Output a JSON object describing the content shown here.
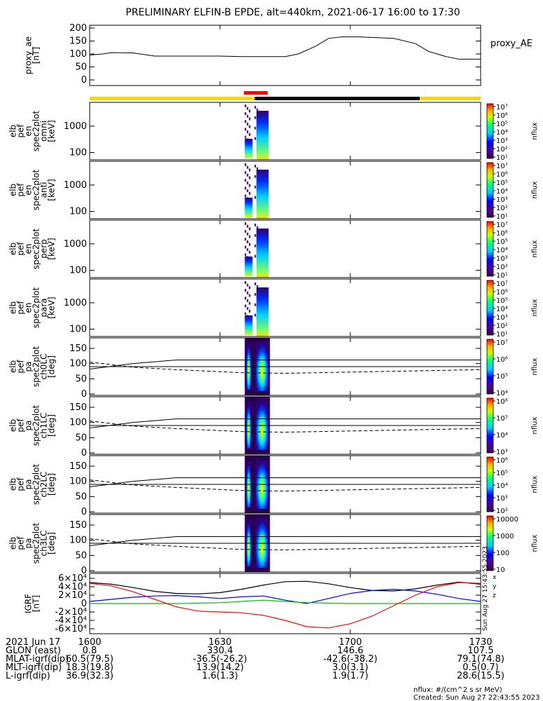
{
  "title": "PRELIMINARY ELFIN-B EPDE, alt=440km, 2021-06-17 16:00 to 17:30",
  "colors": {
    "axis": "#000000",
    "bar_yellow": "#ffd700",
    "bar_red": "#ff0000",
    "bar_black": "#000000",
    "bx": "#0000ff",
    "by": "#00c000",
    "bz": "#ff0000",
    "btot": "#000000"
  },
  "chart_data": [
    {
      "panel": "proxy_ae",
      "type": "line",
      "ylabel_lines": [
        "proxy_ae",
        "[nT]"
      ],
      "legend": "proxy_AE",
      "ylim": [
        0,
        200
      ],
      "yticks": [
        "0",
        "50",
        "100",
        "150",
        "200"
      ],
      "x_minutes": [
        0,
        3,
        5,
        10,
        15,
        18,
        20,
        30,
        35,
        45,
        48,
        52,
        55,
        58,
        62,
        70,
        75,
        78,
        80,
        82,
        85,
        90
      ],
      "values": [
        96,
        100,
        105,
        104,
        92,
        92,
        92,
        92,
        90,
        90,
        100,
        130,
        160,
        166,
        166,
        160,
        140,
        110,
        100,
        90,
        80,
        80
      ]
    },
    {
      "panel": "time_bar",
      "type": "status-bar",
      "segments": [
        {
          "start": 0,
          "end": 38,
          "color": "yellow"
        },
        {
          "start": 38,
          "end": 76,
          "color": "black"
        },
        {
          "start": 76,
          "end": 90,
          "color": "yellow"
        }
      ],
      "highlight": {
        "start": 35.5,
        "end": 41,
        "color": "red"
      }
    },
    {
      "panel": "en_omni",
      "type": "heatmap",
      "ylabel_lines": [
        "elb",
        "pef",
        "en",
        "spec2plot",
        "omni",
        "[keV]"
      ],
      "yscale": "log",
      "yticks": [
        "100",
        "1000"
      ],
      "colorbar": {
        "label": "nflux",
        "ticks": [
          "10¹",
          "10²",
          "10³",
          "10⁴",
          "10⁵",
          "10⁶",
          "10⁷"
        ]
      }
    },
    {
      "panel": "en_anti",
      "type": "heatmap",
      "ylabel_lines": [
        "elb",
        "pef",
        "en",
        "spec2plot",
        "anti",
        "[keV]"
      ],
      "yscale": "log",
      "yticks": [
        "100",
        "1000"
      ],
      "colorbar": {
        "label": "nflux",
        "ticks": [
          "10¹",
          "10²",
          "10³",
          "10⁴",
          "10⁵",
          "10⁶",
          "10⁷"
        ]
      }
    },
    {
      "panel": "en_perp",
      "type": "heatmap",
      "ylabel_lines": [
        "elb",
        "pef",
        "en",
        "spec2plot",
        "perp",
        "[keV]"
      ],
      "yscale": "log",
      "yticks": [
        "100",
        "1000"
      ],
      "colorbar": {
        "label": "nflux",
        "ticks": [
          "10¹",
          "10²",
          "10³",
          "10⁴",
          "10⁵",
          "10⁶",
          "10⁷"
        ]
      }
    },
    {
      "panel": "en_para",
      "type": "heatmap",
      "ylabel_lines": [
        "elb",
        "pef",
        "en",
        "spec2plot",
        "para",
        "[keV]"
      ],
      "yscale": "log",
      "yticks": [
        "100",
        "1000"
      ],
      "colorbar": {
        "label": "nflux",
        "ticks": [
          "10¹",
          "10²",
          "10³",
          "10⁴",
          "10⁵",
          "10⁶",
          "10⁷"
        ]
      }
    },
    {
      "panel": "pa_ch0",
      "type": "heatmap",
      "ylabel_lines": [
        "elb",
        "pef",
        "pa",
        "spec2plot",
        "ch0LC",
        "[deg]"
      ],
      "ylim": [
        0,
        180
      ],
      "yticks": [
        "0",
        "50",
        "100",
        "150"
      ],
      "colorbar": {
        "label": "nflux",
        "ticks": [
          "10⁴",
          "10⁵",
          "10⁶",
          "10⁷"
        ]
      }
    },
    {
      "panel": "pa_ch1",
      "type": "heatmap",
      "ylabel_lines": [
        "elb",
        "pef",
        "pa",
        "spec2plot",
        "ch1LC",
        "[deg]"
      ],
      "ylim": [
        0,
        180
      ],
      "yticks": [
        "0",
        "50",
        "100",
        "150"
      ],
      "colorbar": {
        "label": "nflux",
        "ticks": [
          "10³",
          "10⁴",
          "10⁵",
          "10⁶"
        ]
      }
    },
    {
      "panel": "pa_ch2",
      "type": "heatmap",
      "ylabel_lines": [
        "elb",
        "pef",
        "pa",
        "spec2plot",
        "ch2LC",
        "[deg]"
      ],
      "ylim": [
        0,
        180
      ],
      "yticks": [
        "0",
        "50",
        "100",
        "150"
      ],
      "colorbar": {
        "label": "nflux",
        "ticks": [
          "10²",
          "10³",
          "10⁴",
          "10⁵",
          "10⁶"
        ]
      }
    },
    {
      "panel": "pa_ch3",
      "type": "heatmap",
      "ylabel_lines": [
        "elb",
        "pef",
        "pa",
        "spec2plot",
        "ch3LC",
        "[deg]"
      ],
      "ylim": [
        0,
        180
      ],
      "yticks": [
        "0",
        "50",
        "100",
        "150"
      ],
      "colorbar": {
        "label": "nflux",
        "ticks": [
          "10",
          "100",
          "1000",
          "10000"
        ]
      }
    },
    {
      "panel": "igrf",
      "type": "line",
      "ylabel_lines": [
        "IGRF",
        "[nT]"
      ],
      "ylim": [
        -65000,
        65000
      ],
      "yticks": [
        "-6×10⁴",
        "-4×10⁴",
        "-2×10⁴",
        "0",
        "2×10⁴",
        "4×10⁴",
        "6×10⁴"
      ],
      "side_labels": [
        "x",
        "y",
        "z"
      ],
      "x_minutes": [
        0,
        5,
        10,
        15,
        20,
        25,
        30,
        35,
        40,
        45,
        50,
        55,
        60,
        65,
        70,
        75,
        80,
        85,
        90
      ],
      "series": [
        {
          "values": [
            50000,
            46000,
            38000,
            29000,
            24000,
            23000,
            26000,
            34000,
            44000,
            52000,
            53000,
            47000,
            38000,
            31000,
            30000,
            35000,
            44000,
            51000,
            46000
          ]
        },
        {
          "values": [
            5000,
            10000,
            15000,
            18000,
            19000,
            16000,
            12000,
            16000,
            18000,
            8000,
            0,
            12000,
            24000,
            31000,
            34000,
            30000,
            22000,
            12000,
            5000
          ]
        },
        {
          "values": [
            0,
            0,
            0,
            0,
            0,
            1000,
            2000,
            5000,
            8000,
            5000,
            2000,
            1000,
            0,
            0,
            0,
            0,
            0,
            0,
            0
          ]
        },
        {
          "values": [
            48000,
            42000,
            28000,
            10000,
            -8000,
            -18000,
            -20000,
            -22000,
            -28000,
            -40000,
            -55000,
            -58000,
            -48000,
            -30000,
            -5000,
            20000,
            40000,
            50000,
            48000
          ]
        }
      ],
      "rotated_text": "Sun Aug 27 15:43:55 2023"
    }
  ],
  "x_axis": {
    "row_labels": [
      "2021 Jun 17",
      "GLON (east)",
      "MLAT-igrf(dip)",
      "MLT-igrf(dip)",
      "L-igrf(dip)"
    ],
    "columns": [
      {
        "minutes": 0,
        "values": [
          "1600",
          "0.8",
          "60.5(79.5)",
          "18.3(19.8)",
          "36.9(32.3)"
        ]
      },
      {
        "minutes": 30,
        "values": [
          "1630",
          "330.4",
          "-36.5(-26.2)",
          "13.9(14.2)",
          "1.6(1.3)"
        ]
      },
      {
        "minutes": 60,
        "values": [
          "1700",
          "146.6",
          "-42.6(-38.2)",
          "3.0(3.1)",
          "1.9(1.7)"
        ]
      },
      {
        "minutes": 90,
        "values": [
          "1730",
          "107.5",
          "79.1(74.8)",
          "0.5(0.7)",
          "28.6(15.5)"
        ]
      }
    ]
  },
  "footer": {
    "nflux_units": "nflux: #/(cm^2 s sr MeV)",
    "created": "Created: Sun Aug 27 22:43:55 2023"
  }
}
